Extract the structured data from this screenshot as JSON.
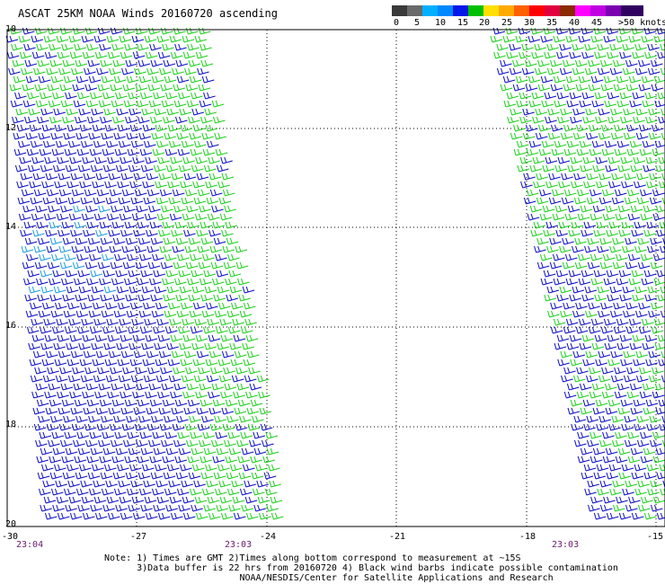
{
  "title": "ASCAT 25KM NOAA Winds 20160720 ascending",
  "legend": {
    "labels": [
      "0",
      "5",
      "10",
      "15",
      "20",
      "25",
      "30",
      "35",
      "40",
      "45",
      ">50 knots"
    ],
    "colors": [
      "#3a3a3a",
      "#6a6a6a",
      "#00b0ff",
      "#0088ff",
      "#0018e8",
      "#00c000",
      "#ffe000",
      "#ffaa00",
      "#ff6000",
      "#ff0000",
      "#e00040",
      "#8a2a00",
      "#ff00ff",
      "#c000e0",
      "#7a00b0",
      "#300060"
    ]
  },
  "map": {
    "lat_labels": [
      "10",
      "12",
      "14",
      "16",
      "18",
      "20"
    ],
    "lon_labels": [
      "-30",
      "-27",
      "-24",
      "-21",
      "-18",
      "-15"
    ],
    "time_labels": [
      "23:04",
      "23:03",
      "23:03"
    ],
    "swath_colors": {
      "dominant": "#0a0ac8",
      "secondary": "#18d018",
      "tertiary": "#1a9ce0"
    }
  },
  "notes": [
    "Note: 1) Times are GMT 2)Times along bottom correspond to measurement at ~15S",
    "      3)Data buffer is 22 hrs from 20160720 4) Black wind barbs indicate possible contamination",
    "                         NOAA/NESDIS/Center for Satellite Applications and Research"
  ]
}
